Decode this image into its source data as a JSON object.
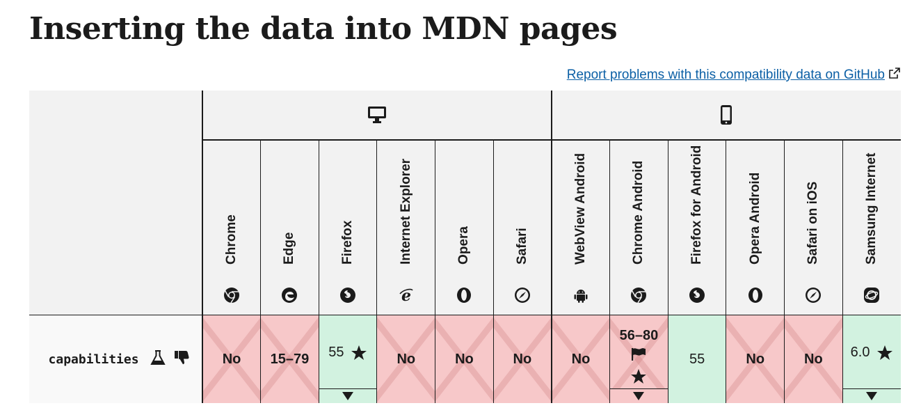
{
  "page": {
    "title": "Inserting the data into MDN pages",
    "report_link": "Report problems with this compatibility data on GitHub"
  },
  "platforms": [
    {
      "name": "desktop",
      "icon": "desktop-icon"
    },
    {
      "name": "mobile",
      "icon": "mobile-icon"
    }
  ],
  "browsers": [
    {
      "name": "Chrome",
      "icon": "chrome-icon"
    },
    {
      "name": "Edge",
      "icon": "edge-icon"
    },
    {
      "name": "Firefox",
      "icon": "firefox-icon"
    },
    {
      "name": "Internet Explorer",
      "icon": "internet-explorer-icon"
    },
    {
      "name": "Opera",
      "icon": "opera-icon"
    },
    {
      "name": "Safari",
      "icon": "safari-icon"
    },
    {
      "name": "WebView Android",
      "icon": "android-icon"
    },
    {
      "name": "Chrome Android",
      "icon": "chrome-icon"
    },
    {
      "name": "Firefox for Android",
      "icon": "firefox-icon"
    },
    {
      "name": "Opera Android",
      "icon": "opera-icon"
    },
    {
      "name": "Safari on iOS",
      "icon": "safari-icon"
    },
    {
      "name": "Samsung Internet",
      "icon": "samsung-internet-icon"
    }
  ],
  "feature": {
    "name": "capabilities",
    "icons": [
      "experimental-flask-icon",
      "deprecated-thumbs-down-icon"
    ]
  },
  "support": [
    {
      "label": "No",
      "status": "no"
    },
    {
      "label": "15–79",
      "status": "no"
    },
    {
      "label": "55",
      "status": "yes"
    },
    {
      "label": "No",
      "status": "no"
    },
    {
      "label": "No",
      "status": "no"
    },
    {
      "label": "No",
      "status": "no"
    },
    {
      "label": "No",
      "status": "no"
    },
    {
      "label": "56–80",
      "status": "no"
    },
    {
      "label": "55",
      "status": "yes"
    },
    {
      "label": "No",
      "status": "no"
    },
    {
      "label": "No",
      "status": "no"
    },
    {
      "label": "6.0",
      "status": "yes"
    }
  ],
  "colors": {
    "no_bg": "#f7c8c9",
    "yes_bg": "#d2f2e0",
    "header_bg": "#f2f2f2",
    "link": "#0b5fa5"
  }
}
